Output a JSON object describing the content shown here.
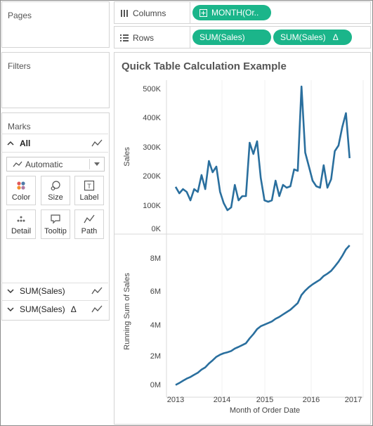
{
  "pages": {
    "title": "Pages"
  },
  "filters": {
    "title": "Filters"
  },
  "shelves": {
    "columns_label": "Columns",
    "columns_pill": "MONTH(Or..",
    "rows_label": "Rows",
    "rows_pill_1": "SUM(Sales)",
    "rows_pill_2": "SUM(Sales)",
    "rows_pill_2_badge": "Δ"
  },
  "marks": {
    "title": "Marks",
    "all_label": "All",
    "mark_type": "Automatic",
    "buttons": {
      "color": "Color",
      "size": "Size",
      "label": "Label",
      "detail": "Detail",
      "tooltip": "Tooltip",
      "path": "Path"
    },
    "cards": [
      {
        "label": "SUM(Sales)",
        "badge": ""
      },
      {
        "label": "SUM(Sales)",
        "badge": "Δ"
      }
    ]
  },
  "view": {
    "title": "Quick Table Calculation Example",
    "x_axis_title": "Month of Order Date"
  },
  "colors": {
    "pill": "#1bb58a",
    "line": "#2a6f9e"
  },
  "chart_data": [
    {
      "type": "line",
      "ylabel": "Sales",
      "xlabel": "Month of Order Date",
      "x_ticks": [
        "2013",
        "2014",
        "2015",
        "2016",
        "2017"
      ],
      "y_ticks": [
        "0K",
        "100K",
        "200K",
        "300K",
        "400K",
        "500K"
      ],
      "ylim": [
        0,
        520000
      ],
      "x_start": "2013-01",
      "values": [
        148000,
        125000,
        140000,
        130000,
        100000,
        140000,
        130000,
        190000,
        140000,
        240000,
        200000,
        220000,
        130000,
        90000,
        65000,
        75000,
        155000,
        100000,
        115000,
        115000,
        305000,
        265000,
        310000,
        180000,
        100000,
        95000,
        100000,
        170000,
        115000,
        155000,
        145000,
        150000,
        210000,
        205000,
        505000,
        270000,
        220000,
        170000,
        150000,
        145000,
        225000,
        145000,
        175000,
        275000,
        295000,
        360000,
        410000,
        250000
      ]
    },
    {
      "type": "line",
      "ylabel": "Running Sum of Sales",
      "xlabel": "Month of Order Date",
      "x_ticks": [
        "2013",
        "2014",
        "2015",
        "2016",
        "2017"
      ],
      "y_ticks": [
        "0M",
        "2M",
        "4M",
        "6M",
        "8M"
      ],
      "ylim": [
        0,
        9200000
      ],
      "x_start": "2013-01",
      "values": [
        148000,
        273000,
        413000,
        543000,
        643000,
        783000,
        913000,
        1103000,
        1243000,
        1483000,
        1683000,
        1903000,
        2033000,
        2123000,
        2188000,
        2263000,
        2418000,
        2518000,
        2633000,
        2748000,
        3053000,
        3318000,
        3628000,
        3808000,
        3908000,
        4003000,
        4103000,
        4273000,
        4388000,
        4543000,
        4688000,
        4838000,
        5048000,
        5253000,
        5758000,
        6028000,
        6248000,
        6418000,
        6568000,
        6713000,
        6938000,
        7083000,
        7258000,
        7533000,
        7828000,
        8188000,
        8598000,
        8848000
      ]
    }
  ]
}
